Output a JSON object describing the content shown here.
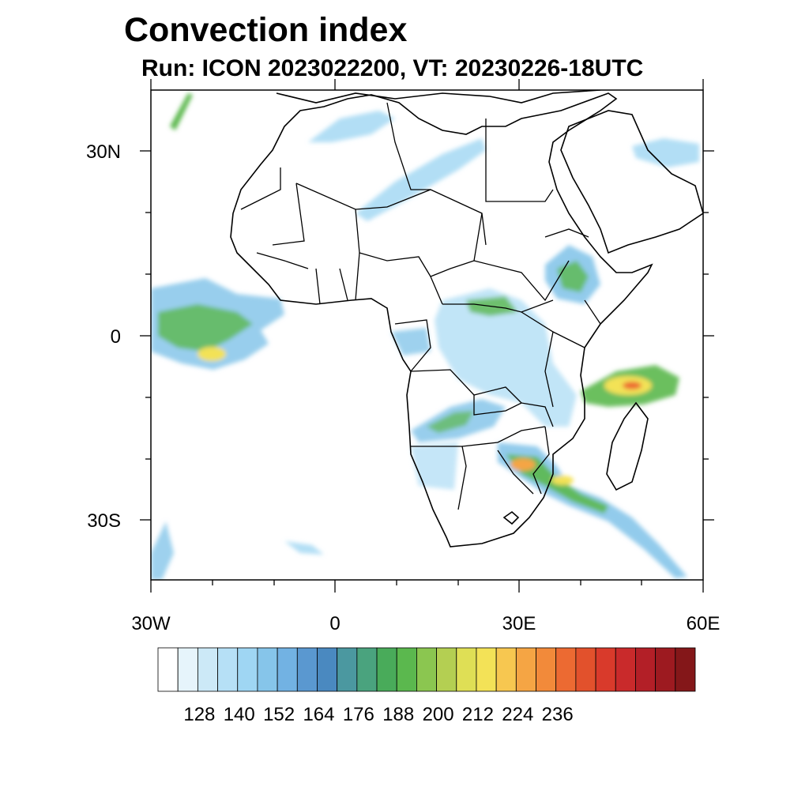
{
  "title": "Convection index",
  "subtitle": "Run: ICON 2023022200,  VT: 20230226-18UTC",
  "lat_ticks": [
    "30N",
    "0",
    "30S"
  ],
  "lon_ticks": [
    "30W",
    "0",
    "30E",
    "60E"
  ],
  "colorbar": {
    "labels": [
      "128",
      "140",
      "152",
      "164",
      "176",
      "188",
      "200",
      "212",
      "224",
      "236"
    ],
    "colors": [
      "#ffffff",
      "#e6f4fb",
      "#cce9f7",
      "#b6e0f6",
      "#9fd6f3",
      "#86c5ea",
      "#72b2e3",
      "#5a98d0",
      "#4a89c0",
      "#4b98a0",
      "#4aa37e",
      "#49ab5a",
      "#5bb84e",
      "#8bc650",
      "#b4cf52",
      "#dfdf55",
      "#f3e257",
      "#f7c750",
      "#f5a544",
      "#f28a3a",
      "#ec6a32",
      "#e2512c",
      "#d93a2b",
      "#c92a2b",
      "#b31f27",
      "#9d1a20",
      "#841719"
    ]
  },
  "map": {
    "region": "Africa",
    "lon_range": [
      -30,
      60
    ],
    "lat_range": [
      -40,
      40
    ]
  },
  "chart_data": {
    "type": "heatmap",
    "title": "Convection index",
    "subtitle": "Run: ICON 2023022200,  VT: 20230226-18UTC",
    "x_ticks": [
      "30W",
      "0",
      "30E",
      "60E"
    ],
    "y_ticks": [
      "30N",
      "0",
      "30S"
    ],
    "colorbar_labels": [
      128,
      140,
      152,
      164,
      176,
      188,
      200,
      212,
      224,
      236
    ],
    "xlim": [
      -30,
      60
    ],
    "ylim": [
      -40,
      40
    ]
  }
}
